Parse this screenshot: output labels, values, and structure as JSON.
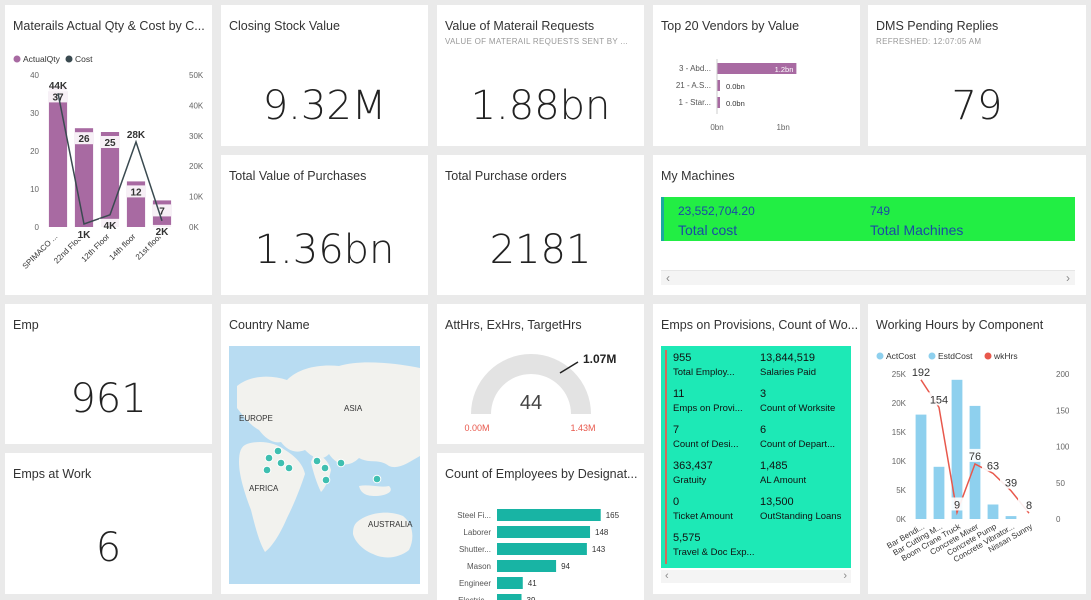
{
  "tiles": {
    "materials": {
      "title": "Materails Actual Qty & Cost by C..."
    },
    "closing": {
      "title": "Closing Stock Value",
      "value": "9.32M"
    },
    "requests": {
      "title": "Value of Materail Requests",
      "subtitle": "VALUE OF MATERAIL REQUESTS SENT BY ...",
      "value": "1.88bn"
    },
    "vendors": {
      "title": "Top 20 Vendors by Value"
    },
    "dms": {
      "title": "DMS Pending Replies",
      "subtitle": "REFRESHED: 12:07:05 AM",
      "value": "79"
    },
    "purchases": {
      "title": "Total Value of Purchases",
      "value": "1.36bn"
    },
    "orders": {
      "title": "Total Purchase orders",
      "value": "2181"
    },
    "machines": {
      "title": "My Machines",
      "cost_value": "23,552,704.20",
      "cost_label": "Total cost",
      "count_value": "749",
      "count_label": "Total Machines"
    },
    "emp": {
      "title": "Emp",
      "value": "961"
    },
    "country": {
      "title": "Country Name",
      "labels": [
        "EUROPE",
        "ASIA",
        "AFRICA",
        "AUSTRALIA"
      ]
    },
    "gauge": {
      "title": "AttHrs, ExHrs, TargetHrs",
      "value": "44",
      "min": "0.00M",
      "max": "1.43M",
      "target": "1.07M"
    },
    "provisions": {
      "title": "Emps on Provisions, Count of Wo...",
      "items": [
        {
          "num": "955",
          "label": "Total Employ..."
        },
        {
          "num": "13,844,519",
          "label": "Salaries Paid"
        },
        {
          "num": "11",
          "label": "Emps on Provi..."
        },
        {
          "num": "3",
          "label": "Count of Worksite"
        },
        {
          "num": "7",
          "label": "Count of Desi..."
        },
        {
          "num": "6",
          "label": "Count of Depart..."
        },
        {
          "num": "363,437",
          "label": "Gratuity"
        },
        {
          "num": "1,485",
          "label": "AL Amount"
        },
        {
          "num": "0",
          "label": "Ticket Amount"
        },
        {
          "num": "13,500",
          "label": "OutStanding Loans"
        },
        {
          "num": "5,575",
          "label": "Travel & Doc Exp..."
        }
      ]
    },
    "hours": {
      "title": "Working Hours by Component"
    },
    "empsWork": {
      "title": "Emps at Work",
      "value": "6"
    },
    "designation": {
      "title": "Count of Employees by Designat..."
    }
  },
  "colors": {
    "purple": "#a86aa2",
    "dark": "#3a4a50",
    "green": "#22ee44",
    "teal": "#1de9b6",
    "barTeal": "#18b4a4",
    "lightBlue": "#8ed0ee",
    "red": "#e8584c",
    "mapWater": "#b8dcf2",
    "mapLand": "#f2f2ee",
    "dot": "#3fbfb0"
  },
  "chart_data": [
    {
      "id": "materials",
      "type": "bar",
      "legend": [
        "ActualQty",
        "Cost"
      ],
      "categories": [
        "SPIMACO ...",
        "22nd Floor",
        "12th Floor",
        "14th floor",
        "21st floor"
      ],
      "series": [
        {
          "name": "ActualQty",
          "type": "bar",
          "values": [
            37,
            26,
            25,
            12,
            7
          ]
        },
        {
          "name": "Cost",
          "type": "line",
          "values": [
            44000,
            1000,
            4000,
            28000,
            2000
          ],
          "labels": [
            "44K",
            "1K",
            "4K",
            "28K",
            "2K"
          ]
        }
      ],
      "ylim": [
        0,
        40
      ],
      "yticks": [
        0,
        10,
        20,
        30,
        40
      ],
      "y2lim": [
        0,
        50000
      ],
      "y2ticks": [
        "0K",
        "10K",
        "20K",
        "30K",
        "40K",
        "50K"
      ]
    },
    {
      "id": "vendors",
      "type": "bar",
      "orientation": "horizontal",
      "categories": [
        "3 - Abd...",
        "21 - A.S...",
        "1 - Star..."
      ],
      "values": [
        1.2,
        0.0,
        0.0
      ],
      "labels": [
        "1.2bn",
        "0.0bn",
        "0.0bn"
      ],
      "xlim": [
        0,
        1.3
      ],
      "xticks": [
        "0bn",
        "1bn"
      ]
    },
    {
      "id": "designation",
      "type": "bar",
      "orientation": "horizontal",
      "categories": [
        "Steel Fi...",
        "Laborer",
        "Shutter...",
        "Mason",
        "Engineer",
        "Electric..."
      ],
      "values": [
        165,
        148,
        143,
        94,
        41,
        39
      ]
    },
    {
      "id": "hours",
      "type": "bar",
      "legend": [
        "ActCost",
        "EstdCost",
        "wkHrs"
      ],
      "categories": [
        "Bar Bendi...",
        "Bar Cutting M...",
        "Boom Crane Truck",
        "Concrete Mixer",
        "Concrete Pump",
        "Concrete Vibrator...",
        "Nissan Sunny"
      ],
      "series": [
        {
          "name": "ActCost",
          "type": "bar",
          "values": [
            18000,
            9000,
            24000,
            19500,
            2500,
            500,
            0
          ]
        },
        {
          "name": "wkHrs",
          "type": "line",
          "values": [
            192,
            154,
            9,
            76,
            63,
            39,
            8
          ],
          "labels": [
            "192",
            "154",
            "9",
            "76",
            "63",
            "39",
            "8"
          ]
        }
      ],
      "ylim": [
        0,
        25000
      ],
      "yticks": [
        "0K",
        "5K",
        "10K",
        "15K",
        "20K",
        "25K"
      ],
      "y2lim": [
        0,
        200
      ],
      "y2ticks": [
        "0",
        "50",
        "100",
        "150",
        "200"
      ]
    }
  ]
}
